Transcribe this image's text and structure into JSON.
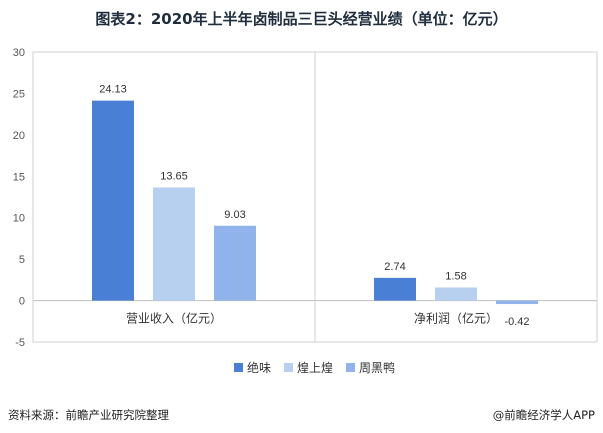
{
  "chart_data": {
    "type": "bar",
    "title": "图表2：2020年上半年卤制品三巨头经营业绩（单位：亿元）",
    "categories": [
      "营业收入（亿元）",
      "净利润（亿元）"
    ],
    "series": [
      {
        "name": "绝味",
        "values": [
          24.13,
          2.74
        ],
        "color": "#4a7fd6"
      },
      {
        "name": "煌上煌",
        "values": [
          13.65,
          1.58
        ],
        "color": "#b8d0f0"
      },
      {
        "name": "周黑鸭",
        "values": [
          9.03,
          -0.42
        ],
        "color": "#8fb3ea"
      }
    ],
    "data_labels": [
      [
        "24.13",
        "13.65",
        "9.03"
      ],
      [
        "2.74",
        "1.58",
        "-0.42"
      ]
    ],
    "ylim": [
      -5,
      30
    ],
    "yticks": [
      -5,
      0,
      5,
      10,
      15,
      20,
      25,
      30
    ],
    "xlabel": "",
    "ylabel": "",
    "grid": false,
    "legend_position": "bottom"
  },
  "footer": {
    "source": "资料来源：前瞻产业研究院整理",
    "credit": "@前瞻经济学人APP"
  }
}
